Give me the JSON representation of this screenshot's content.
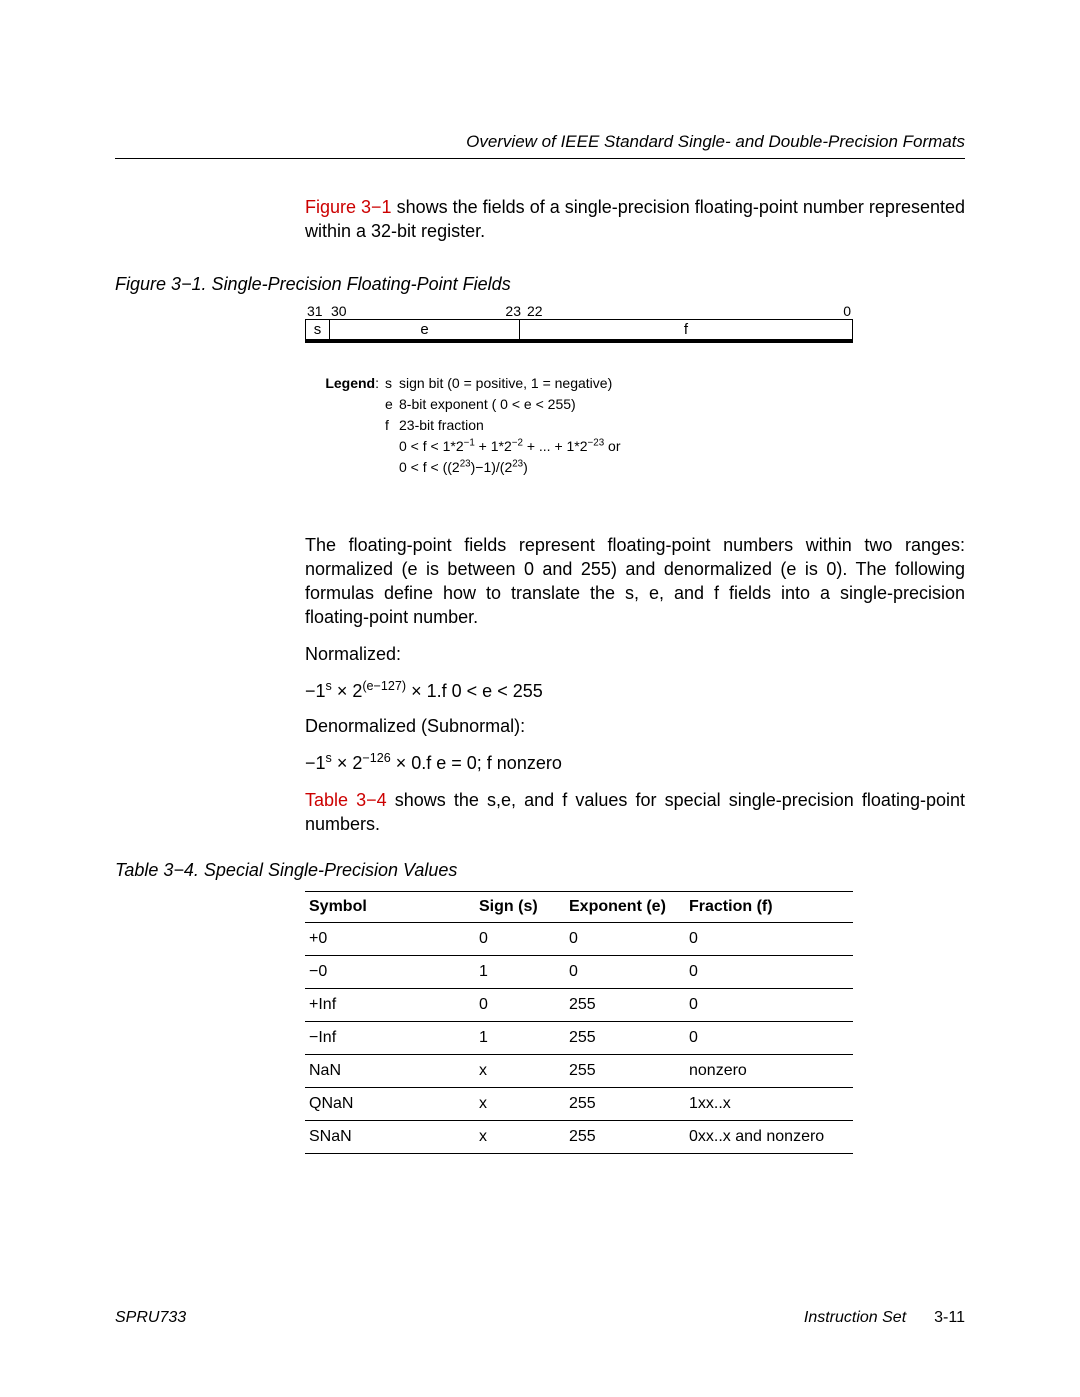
{
  "header": {
    "title": "Overview of IEEE Standard Single- and Double-Precision Formats"
  },
  "intro": {
    "link": "Figure 3−1",
    "rest": " shows the fields of a single-precision floating-point number represented within a 32-bit register."
  },
  "figure": {
    "title": "Figure 3−1.  Single-Precision Floating-Point Fields",
    "bitlabels": {
      "b31": "31",
      "b30": "30",
      "b23": "23",
      "b22": "22",
      "b0": "0"
    },
    "cells": {
      "s": "s",
      "e": "e",
      "f": "f"
    },
    "legend": {
      "label": "Legend",
      "rows": [
        {
          "sym": "s",
          "desc": "sign bit (0 = positive, 1 = negative)"
        },
        {
          "sym": "e",
          "desc": "8-bit exponent ( 0 < e < 255)"
        },
        {
          "sym": "f",
          "desc": "23-bit fraction"
        }
      ],
      "extra1_pre": "0 < f < 1*2",
      "extra1_s1": "−1",
      "extra1_mid1": " + 1*2",
      "extra1_s2": "−2",
      "extra1_mid2": " + ... + 1*2",
      "extra1_s3": "−23",
      "extra1_post": " or",
      "extra2_pre": "0 < f < ((2",
      "extra2_s1": "23",
      "extra2_mid": ")−1)/(2",
      "extra2_s2": "23",
      "extra2_post": ")"
    }
  },
  "body": {
    "p1": "The floating-point fields represent floating-point numbers within two ranges: normalized (e is between 0 and 255) and denormalized (e is 0). The following formulas define how to translate the s, e, and f fields into a single-precision floating-point number.",
    "norm_label": "Normalized:",
    "norm_pre": "−1",
    "norm_s1": "s",
    "norm_mid1": " × 2",
    "norm_s2": "(e−127)",
    "norm_mid2": " × 1.f     0 < e < 255",
    "denorm_label": "Denormalized (Subnormal):",
    "denorm_pre": "−1",
    "denorm_s1": "s",
    "denorm_mid1": " × 2",
    "denorm_s2": "−126",
    "denorm_mid2": " × 0.f      e = 0; f nonzero",
    "p2_link": "Table 3−4",
    "p2_rest": " shows the s,e, and f values for special single-precision floating-point numbers."
  },
  "table": {
    "title": "Table 3−4.  Special Single-Precision Values",
    "columns": [
      "Symbol",
      "Sign (s)",
      "Exponent (e)",
      "Fraction (f)"
    ],
    "rows": [
      [
        "+0",
        "0",
        "0",
        "0"
      ],
      [
        "−0",
        "1",
        "0",
        "0"
      ],
      [
        "+Inf",
        "0",
        "255",
        "0"
      ],
      [
        "−Inf",
        "1",
        "255",
        "0"
      ],
      [
        "NaN",
        "x",
        "255",
        "nonzero"
      ],
      [
        "QNaN",
        "x",
        "255",
        "1xx..x"
      ],
      [
        "SNaN",
        "x",
        "255",
        "0xx..x and nonzero"
      ]
    ]
  },
  "footer": {
    "left": "SPRU733",
    "chapter": "Instruction Set",
    "page": "3-11"
  }
}
